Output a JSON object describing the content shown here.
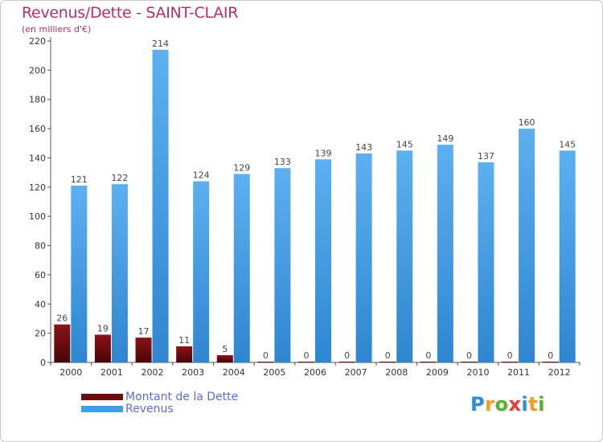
{
  "title": "Revenus/Dette - SAINT-CLAIR",
  "subtitle": "(en milliers d'€)",
  "logo_text": "Proxiti",
  "logo_colors": [
    "#2e8fd8",
    "#f0a020",
    "#5ab030",
    "#e04040",
    "#2e8fd8",
    "#f0a020",
    "#5ab030"
  ],
  "colors": {
    "dette": "#6b0c10",
    "revenus": "#3f9de4",
    "title": "#b0306a",
    "legend_text": "#5a6bd8"
  },
  "chart_data": {
    "type": "bar",
    "categories": [
      "2000",
      "2001",
      "2002",
      "2003",
      "2004",
      "2005",
      "2006",
      "2007",
      "2008",
      "2009",
      "2010",
      "2011",
      "2012"
    ],
    "series": [
      {
        "name": "Montant de la Dette",
        "values": [
          26,
          19,
          17,
          11,
          5,
          0,
          0,
          0,
          0,
          0,
          0,
          0,
          0
        ]
      },
      {
        "name": "Revenus",
        "values": [
          121,
          122,
          214,
          124,
          129,
          133,
          139,
          143,
          145,
          149,
          137,
          160,
          145
        ]
      }
    ],
    "ylim": [
      0,
      220
    ],
    "yticks": [
      0,
      20,
      40,
      60,
      80,
      100,
      120,
      140,
      160,
      180,
      200,
      220
    ],
    "grid": false,
    "legend_position": "bottom-left"
  }
}
